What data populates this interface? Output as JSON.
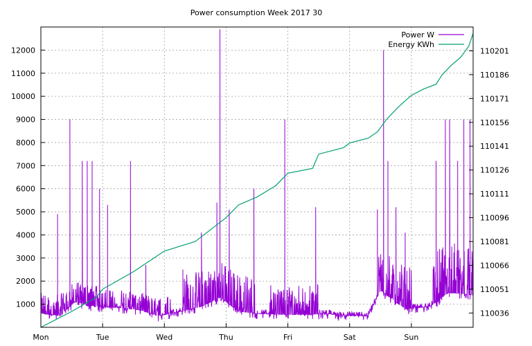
{
  "chart_data": {
    "type": "line",
    "title": "Power consumption Week 2017 30",
    "xlabel": "",
    "ylabel": "",
    "y2label": "",
    "grid": true,
    "legend_position": "top-right",
    "x_ticks": [
      "Mon",
      "Tue",
      "Wed",
      "Thu",
      "Fri",
      "Sat",
      "Sun"
    ],
    "x_range": [
      0,
      7
    ],
    "y_range": [
      0,
      13000
    ],
    "y_ticks": [
      1000,
      2000,
      3000,
      4000,
      5000,
      6000,
      7000,
      8000,
      9000,
      10000,
      11000,
      12000
    ],
    "y2_range": [
      110027,
      110216
    ],
    "y2_ticks": [
      110036,
      110051,
      110066,
      110081,
      110096,
      110111,
      110126,
      110141,
      110156,
      110171,
      110186,
      110201
    ],
    "series": [
      {
        "name": "Power W",
        "axis": "left",
        "color": "#9400d3",
        "base_level": [
          [
            0.0,
            600
          ],
          [
            0.3,
            500
          ],
          [
            0.55,
            1100
          ],
          [
            0.9,
            900
          ],
          [
            1.3,
            850
          ],
          [
            1.6,
            750
          ],
          [
            1.9,
            500
          ],
          [
            2.2,
            650
          ],
          [
            2.6,
            900
          ],
          [
            2.9,
            1300
          ],
          [
            3.2,
            700
          ],
          [
            3.5,
            600
          ],
          [
            3.9,
            550
          ],
          [
            4.3,
            550
          ],
          [
            4.6,
            600
          ],
          [
            4.9,
            500
          ],
          [
            5.3,
            500
          ],
          [
            5.5,
            1600
          ],
          [
            5.9,
            800
          ],
          [
            6.3,
            900
          ],
          [
            6.6,
            1500
          ],
          [
            7.0,
            1400
          ]
        ],
        "spikes": [
          [
            0.27,
            4900
          ],
          [
            0.47,
            9000
          ],
          [
            0.67,
            7200
          ],
          [
            0.75,
            7200
          ],
          [
            0.83,
            7200
          ],
          [
            0.95,
            6000
          ],
          [
            1.08,
            5300
          ],
          [
            1.45,
            7200
          ],
          [
            1.7,
            2700
          ],
          [
            2.3,
            2500
          ],
          [
            2.6,
            4100
          ],
          [
            2.85,
            5400
          ],
          [
            2.9,
            12900
          ],
          [
            3.05,
            5100
          ],
          [
            3.45,
            6000
          ],
          [
            3.95,
            9000
          ],
          [
            4.45,
            5200
          ],
          [
            5.45,
            5100
          ],
          [
            5.55,
            12000
          ],
          [
            5.62,
            7200
          ],
          [
            5.75,
            5200
          ],
          [
            5.9,
            4100
          ],
          [
            6.4,
            7200
          ],
          [
            6.55,
            9000
          ],
          [
            6.62,
            9000
          ],
          [
            6.75,
            7200
          ],
          [
            6.85,
            9000
          ],
          [
            6.95,
            9000
          ]
        ],
        "noise_regions": [
          [
            0.0,
            1.2,
            900
          ],
          [
            1.3,
            2.1,
            800
          ],
          [
            2.3,
            3.5,
            1600
          ],
          [
            3.7,
            4.5,
            1300
          ],
          [
            5.45,
            6.0,
            1800
          ],
          [
            6.35,
            7.0,
            2200
          ]
        ]
      },
      {
        "name": "Energy KWh",
        "axis": "right",
        "color": "#009e73",
        "points": [
          [
            0.0,
            110027
          ],
          [
            0.5,
            110037
          ],
          [
            0.9,
            110046
          ],
          [
            1.0,
            110051
          ],
          [
            1.5,
            110062
          ],
          [
            2.0,
            110075
          ],
          [
            2.5,
            110081
          ],
          [
            3.0,
            110096
          ],
          [
            3.2,
            110104
          ],
          [
            3.5,
            110109
          ],
          [
            3.8,
            110116
          ],
          [
            4.0,
            110124
          ],
          [
            4.4,
            110127
          ],
          [
            4.5,
            110136
          ],
          [
            4.9,
            110140
          ],
          [
            5.0,
            110143
          ],
          [
            5.3,
            110146
          ],
          [
            5.45,
            110150
          ],
          [
            5.6,
            110158
          ],
          [
            5.8,
            110166
          ],
          [
            6.0,
            110173
          ],
          [
            6.2,
            110177
          ],
          [
            6.4,
            110180
          ],
          [
            6.5,
            110186
          ],
          [
            6.65,
            110192
          ],
          [
            6.8,
            110197
          ],
          [
            6.93,
            110204
          ],
          [
            7.0,
            110212
          ]
        ]
      }
    ]
  }
}
